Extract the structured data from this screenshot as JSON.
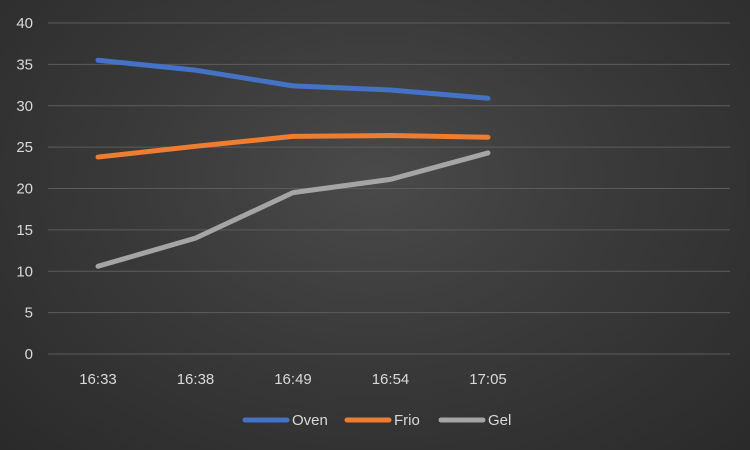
{
  "chart_data": {
    "type": "line",
    "categories": [
      "16:33",
      "16:38",
      "16:49",
      "16:54",
      "17:05"
    ],
    "series": [
      {
        "name": "Oven",
        "values": [
          35.5,
          34.3,
          32.4,
          31.9,
          30.9
        ],
        "color": "#4472C4"
      },
      {
        "name": "Frio",
        "values": [
          23.8,
          25.1,
          26.3,
          26.4,
          26.2
        ],
        "color": "#ED7D31"
      },
      {
        "name": "Gel",
        "values": [
          10.6,
          14.0,
          19.5,
          21.1,
          24.3
        ],
        "color": "#A5A5A5"
      }
    ],
    "ylim": [
      0,
      40
    ],
    "yticks": [
      0,
      5,
      10,
      15,
      20,
      25,
      30,
      35,
      40
    ],
    "grid": true,
    "legend_position": "bottom"
  }
}
